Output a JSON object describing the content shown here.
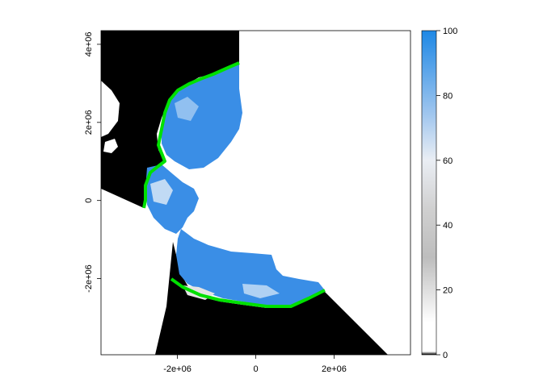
{
  "map": {
    "type": "raster",
    "x_axis": {
      "range": [
        -3950000,
        3950000
      ],
      "ticks": [
        {
          "value": -2000000,
          "label": "-2e+06"
        },
        {
          "value": 0,
          "label": "0"
        },
        {
          "value": 2000000,
          "label": "2e+06"
        }
      ]
    },
    "y_axis": {
      "range": [
        -3950000,
        4350000
      ],
      "ticks": [
        {
          "value": -2000000,
          "label": "-2e+06"
        },
        {
          "value": 0,
          "label": "0"
        },
        {
          "value": 2000000,
          "label": "2e+06"
        },
        {
          "value": 4000000,
          "label": "4e+06"
        }
      ]
    },
    "colors": {
      "land_mask": "#000000",
      "ice_high": "#3a8ee6",
      "ice_mid": "#cfe0f2",
      "coast_outline": "#00e000",
      "background": "#ffffff"
    }
  },
  "legend": {
    "type": "continuous",
    "range": [
      0,
      100
    ],
    "ticks": [
      {
        "value": 0,
        "label": "0"
      },
      {
        "value": 20,
        "label": "20"
      },
      {
        "value": 40,
        "label": "40"
      },
      {
        "value": 60,
        "label": "60"
      },
      {
        "value": 80,
        "label": "80"
      },
      {
        "value": 100,
        "label": "100"
      }
    ],
    "color_stops": [
      {
        "value": 0,
        "color": "#000000"
      },
      {
        "value": 1,
        "color": "#ffffff"
      },
      {
        "value": 10,
        "color": "#ffffff"
      },
      {
        "value": 30,
        "color": "#bdbdbd"
      },
      {
        "value": 45,
        "color": "#d0d0d0"
      },
      {
        "value": 60,
        "color": "#eaeef4"
      },
      {
        "value": 75,
        "color": "#9cc4ee"
      },
      {
        "value": 100,
        "color": "#1e88e5"
      }
    ]
  }
}
